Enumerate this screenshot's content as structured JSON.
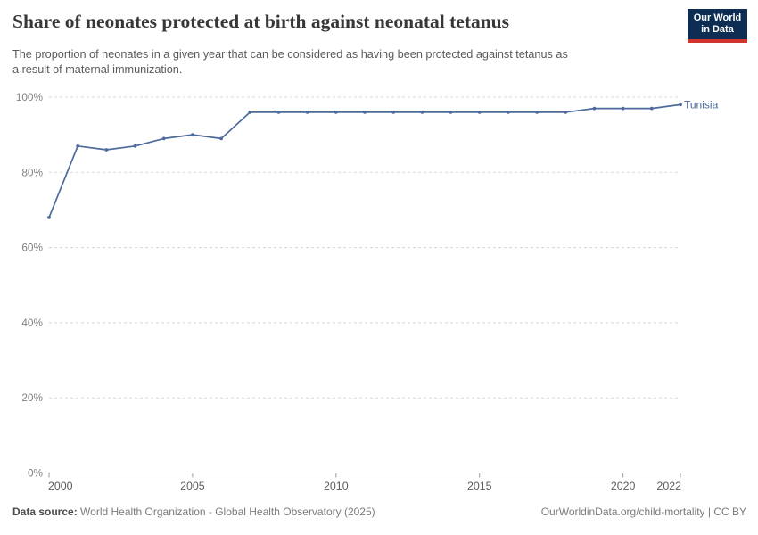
{
  "header": {
    "subtitle_line1": "The proportion of neonates in a given year that can be considered as having been protected against tetanus as",
    "subtitle_line2": "a result of maternal immunization.",
    "logo_line1": "Our World",
    "logo_line2": "in Data"
  },
  "chart_data": {
    "type": "line",
    "title": "Share of neonates protected at birth against neonatal tetanus",
    "subtitle": "The proportion of neonates in a given year that can be considered as having been protected against tetanus as a result of maternal immunization.",
    "x": [
      2000,
      2001,
      2002,
      2003,
      2004,
      2005,
      2006,
      2007,
      2008,
      2009,
      2010,
      2011,
      2012,
      2013,
      2014,
      2015,
      2016,
      2017,
      2018,
      2019,
      2020,
      2021,
      2022
    ],
    "series": [
      {
        "name": "Tunisia",
        "color": "#4C6A9C",
        "values": [
          68,
          87,
          86,
          87,
          89,
          90,
          89,
          96,
          96,
          96,
          96,
          96,
          96,
          96,
          96,
          96,
          96,
          96,
          96,
          97,
          97,
          97,
          98
        ]
      }
    ],
    "xlim": [
      2000,
      2022
    ],
    "ylim": [
      0,
      100
    ],
    "yticks": [
      0,
      20,
      40,
      60,
      80,
      100
    ],
    "y_unit": "%",
    "xticks": [
      2000,
      2005,
      2010,
      2015,
      2020,
      2022
    ],
    "grid": "horizontal-dashed",
    "legend": "end-of-line-label",
    "xlabel": "",
    "ylabel": ""
  },
  "footer": {
    "source_label": "Data source:",
    "source_text": " World Health Organization - Global Health Observatory (2025)",
    "right_text": "OurWorldinData.org/child-mortality | CC BY"
  },
  "colors": {
    "line": "#4C6A9C",
    "grid": "#d8d8d8",
    "axis": "#999999",
    "y_tick_label": "#828282",
    "x_tick_label": "#5c5c5c",
    "title": "#383636",
    "subtitle": "#5a5a5a",
    "logo_bg": "#0d2e52",
    "logo_stripe": "#d0342f"
  }
}
